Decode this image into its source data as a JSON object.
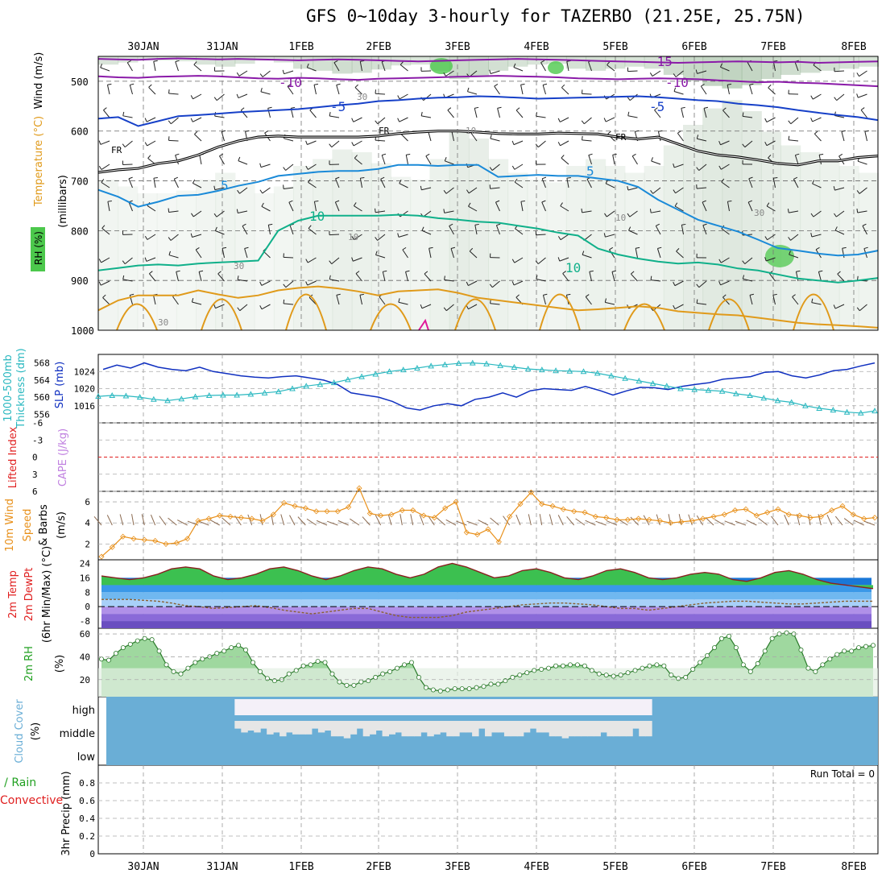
{
  "title": "GFS 0~10day 3-hourly for TAZERBO (21.25E, 25.75N)",
  "colors": {
    "purple": "#8a1aa8",
    "blue": "#1640c8",
    "lightblue": "#1a8ad8",
    "teal": "#10b08a",
    "orange": "#e09a1a",
    "magenta": "#e01a9a",
    "cyan": "#2ab8c0",
    "slp": "#1030c0",
    "wind10": "#e8901a",
    "barb10": "#8b6a50",
    "rhgreen": "#4cc84c",
    "cloud": "#6aaed6",
    "cloudHigh": "#f4f0f8",
    "cloudMid": "#e6e6e6",
    "red": "#e02020",
    "green": "#20a020"
  },
  "chart_data": [
    {
      "type": "line",
      "name": "upper-air cross-section",
      "x_ticks": [
        "30JAN",
        "31JAN",
        "1FEB",
        "2FEB",
        "3FEB",
        "4FEB",
        "5FEB",
        "6FEB",
        "7FEB",
        "8FEB"
      ],
      "ylabel": "(millibars)",
      "left_labels": [
        "RH (%)",
        "Temperature (°C)",
        "Wind (m/s)"
      ],
      "ylim": [
        1000,
        450
      ],
      "yticks": [
        500,
        600,
        700,
        800,
        900,
        1000
      ],
      "contour_labels": [
        "-15",
        "-10",
        "-10",
        "-5",
        "-5",
        "FR",
        "FR",
        "FR",
        "5",
        "5",
        "10",
        "10",
        "30",
        "30",
        "30",
        "10",
        "10",
        "10",
        "30"
      ],
      "isotherms": [
        {
          "name": "-15",
          "values": [
            455,
            456,
            457,
            455,
            454,
            455,
            456,
            455,
            456,
            457,
            458,
            457,
            456,
            457,
            458,
            459,
            460,
            459,
            458,
            457,
            456,
            455,
            456,
            457,
            458,
            459,
            460,
            461,
            462,
            463,
            462,
            461,
            460,
            461,
            462,
            461,
            463,
            462,
            461,
            460
          ]
        },
        {
          "name": "-10",
          "values": [
            490,
            492,
            493,
            491,
            490,
            489,
            490,
            492,
            494,
            495,
            493,
            494,
            496,
            497,
            495,
            494,
            493,
            492,
            491,
            490,
            489,
            490,
            491,
            492,
            494,
            495,
            496,
            495,
            494,
            495,
            496,
            498,
            500,
            502,
            501,
            503,
            504,
            506,
            508,
            510
          ]
        },
        {
          "name": "-5",
          "values": [
            575,
            572,
            590,
            580,
            570,
            568,
            565,
            562,
            560,
            558,
            556,
            552,
            548,
            545,
            540,
            538,
            535,
            533,
            532,
            530,
            531,
            533,
            535,
            534,
            533,
            532,
            531,
            530,
            532,
            535,
            538,
            540,
            545,
            548,
            552,
            558,
            563,
            568,
            572,
            578
          ]
        },
        {
          "name": "FR",
          "values": [
            683,
            678,
            675,
            665,
            660,
            648,
            632,
            620,
            612,
            610,
            612,
            612,
            612,
            612,
            610,
            605,
            602,
            600,
            600,
            602,
            605,
            606,
            606,
            604,
            605,
            606,
            612,
            616,
            612,
            626,
            640,
            648,
            652,
            658,
            665,
            668,
            660,
            660,
            653,
            650
          ]
        },
        {
          "name": "5",
          "values": [
            718,
            732,
            752,
            742,
            730,
            728,
            720,
            710,
            702,
            690,
            686,
            682,
            680,
            680,
            676,
            668,
            668,
            670,
            668,
            668,
            692,
            690,
            688,
            690,
            690,
            695,
            700,
            712,
            738,
            758,
            778,
            790,
            802,
            818,
            835,
            840,
            846,
            850,
            848,
            840
          ]
        },
        {
          "name": "10",
          "values": [
            880,
            875,
            870,
            868,
            870,
            866,
            864,
            862,
            860,
            800,
            780,
            770,
            770,
            770,
            770,
            768,
            770,
            775,
            778,
            782,
            784,
            790,
            796,
            804,
            810,
            836,
            848,
            856,
            862,
            866,
            864,
            868,
            876,
            880,
            888,
            896,
            900,
            904,
            900,
            895
          ]
        }
      ],
      "orange_contour": {
        "name": "lower",
        "values": [
          960,
          940,
          930,
          930,
          930,
          920,
          928,
          935,
          930,
          920,
          915,
          912,
          916,
          922,
          930,
          922,
          920,
          918,
          925,
          935,
          940,
          945,
          950,
          955,
          960,
          958,
          955,
          952,
          955,
          962,
          965,
          968,
          970,
          975,
          980,
          985,
          988,
          990,
          992,
          995
        ]
      },
      "rh_shade": [
        0.2,
        0.15,
        0.1,
        0.1,
        0.12,
        0.2,
        0.25,
        0.18,
        0.1,
        0.15,
        0.3,
        0.35,
        0.42,
        0.4,
        0.32,
        0.22,
        0.2,
        0.35,
        0.55,
        0.5,
        0.35,
        0.25,
        0.2,
        0.18,
        0.3,
        0.35,
        0.3,
        0.25,
        0.3,
        0.45,
        0.6,
        0.72,
        0.78,
        0.7,
        0.55,
        0.45,
        0.4,
        0.35,
        0.3,
        0.25
      ]
    },
    {
      "type": "line",
      "name": "SLP and thickness",
      "left_labels": [
        "1000-500mb",
        "Thickness (dm)",
        "SLP (mb)"
      ],
      "slp_label": "SLP (mb)",
      "slp_ticks": [
        1016,
        1020,
        1024
      ],
      "thick_ticks": [
        556,
        560,
        564,
        568
      ],
      "slp": [
        1024.5,
        1025.5,
        1024.8,
        1026,
        1025,
        1024.5,
        1024.2,
        1025,
        1024,
        1023.5,
        1023,
        1022.7,
        1022.5,
        1022.8,
        1023,
        1022.5,
        1022,
        1021,
        1019,
        1018.5,
        1018,
        1017,
        1015.5,
        1015,
        1016,
        1016.5,
        1016,
        1017.5,
        1018,
        1019,
        1018,
        1019.5,
        1020,
        1019.8,
        1019.6,
        1020.5,
        1019.6,
        1018.5,
        1019.5,
        1020.3,
        1020.2,
        1019.8,
        1020.5,
        1021,
        1021.4,
        1022.2,
        1022.5,
        1022.8,
        1023.8,
        1024,
        1023,
        1022.5,
        1023.2,
        1024.2,
        1024.5,
        1025.3,
        1026
      ],
      "thickness": [
        560.2,
        560.4,
        560.3,
        560,
        559.5,
        559.2,
        559.6,
        560.1,
        560.4,
        560.5,
        560.5,
        560.7,
        561,
        561.3,
        562,
        562.6,
        563,
        563.4,
        564.1,
        564.8,
        565.4,
        566,
        566.4,
        566.8,
        567.3,
        567.6,
        567.9,
        568,
        567.8,
        567.4,
        567,
        566.6,
        566.4,
        566.2,
        566.1,
        566,
        565.6,
        565,
        564.4,
        563.8,
        563.2,
        562.6,
        562,
        561.8,
        561.6,
        561.4,
        560.8,
        560.4,
        559.8,
        559.2,
        558.8,
        558,
        557.4,
        557,
        556.5,
        556.3,
        556.8
      ]
    },
    {
      "type": "line",
      "name": "CAPE and Lifted Index",
      "left_labels": [
        "Lifted Index",
        "CAPE (J/kg)"
      ],
      "lifted_index_ticks": [
        "-6",
        "-3",
        "0",
        "3",
        "6"
      ],
      "lifted_index": [
        0,
        0,
        0,
        0,
        0,
        0,
        0,
        0,
        0,
        0
      ]
    },
    {
      "type": "line",
      "name": "10m wind",
      "left_labels": [
        "10m Wind",
        "Speed",
        "& Barbs",
        "(m/s)"
      ],
      "yticks": [
        2,
        4,
        6
      ],
      "ylim": [
        0.5,
        7
      ],
      "speed": [
        0.8,
        1.7,
        2.7,
        2.5,
        2.4,
        2.3,
        2,
        2.1,
        2.5,
        4.2,
        4.4,
        4.7,
        4.6,
        4.5,
        4.4,
        4.2,
        4.8,
        5.9,
        5.6,
        5.4,
        5.1,
        5.1,
        5.1,
        5.5,
        7.3,
        4.9,
        4.7,
        4.8,
        5.2,
        5.2,
        4.7,
        4.5,
        5.4,
        6,
        3.1,
        2.9,
        3.4,
        2.2,
        4.6,
        5.8,
        6.9,
        5.8,
        5.6,
        5.3,
        5.1,
        5,
        4.6,
        4.5,
        4.3,
        4.3,
        4.4,
        4.3,
        4.2,
        4,
        4.1,
        4.2,
        4.4,
        4.6,
        4.8,
        5.2,
        5.3,
        4.7,
        5,
        5.3,
        4.8,
        4.7,
        4.5,
        4.6,
        5.2,
        5.6,
        4.8,
        4.4,
        4.5
      ]
    },
    {
      "type": "area",
      "name": "2m temperature",
      "left_labels": [
        "2m Temp",
        "2m DewPt",
        "(6hr Min/Max) (°C)"
      ],
      "yticks": [
        -8,
        0,
        8,
        16,
        24
      ],
      "ylim": [
        -12,
        26
      ],
      "temp": [
        17,
        16,
        15,
        16,
        18,
        21,
        22,
        21,
        17,
        15,
        16,
        18,
        21,
        22,
        20,
        17,
        15,
        17,
        20,
        22,
        21,
        18,
        16,
        18,
        22,
        24,
        22,
        19,
        16,
        17,
        20,
        21,
        19,
        16,
        15,
        17,
        20,
        21,
        19,
        16,
        15,
        16,
        18,
        19,
        18,
        15,
        14,
        16,
        19,
        20,
        18,
        15,
        13,
        12,
        11,
        10
      ],
      "dewpt": [
        4,
        4,
        4,
        3.5,
        3,
        2,
        0.5,
        0,
        -1,
        -0.5,
        0,
        0.5,
        -0.5,
        -2,
        -3,
        -4,
        -3,
        -2,
        -1,
        -1,
        -3,
        -5,
        -6,
        -6,
        -6,
        -5,
        -3,
        -2,
        -1,
        0,
        1,
        1.5,
        2,
        2,
        1.5,
        1,
        0,
        -1,
        -1,
        -2,
        -1,
        0,
        1,
        2,
        2.5,
        3,
        3,
        2.5,
        2,
        1.5,
        1.5,
        2,
        2.5,
        3,
        3,
        3
      ]
    },
    {
      "type": "area",
      "name": "2m RH",
      "left_label": "2m RH",
      "ylabel": "(%)",
      "yticks": [
        20,
        40,
        60
      ],
      "ylim": [
        5,
        65
      ],
      "rh": [
        38,
        37,
        43,
        48,
        51,
        54,
        56,
        55,
        45,
        33,
        27,
        25,
        30,
        35,
        38,
        40,
        43,
        45,
        48,
        50,
        46,
        35,
        27,
        21,
        19,
        20,
        25,
        28,
        32,
        33,
        36,
        35,
        25,
        18,
        15,
        15,
        18,
        19,
        22,
        25,
        27,
        30,
        33,
        35,
        22,
        13,
        11,
        10,
        11,
        12,
        12,
        12,
        13,
        14,
        16,
        16,
        19,
        22,
        24,
        26,
        28,
        29,
        30,
        32,
        32,
        33,
        33,
        32,
        28,
        25,
        24,
        23,
        24,
        26,
        28,
        30,
        32,
        33,
        32,
        24,
        21,
        22,
        29,
        35,
        41,
        48,
        56,
        58,
        48,
        33,
        27,
        34,
        45,
        56,
        60,
        61,
        60,
        46,
        30,
        27,
        33,
        38,
        42,
        45,
        45,
        48,
        49,
        50
      ]
    },
    {
      "type": "bar",
      "name": "Cloud Cover",
      "left_labels": [
        "Cloud Cover",
        "(%)"
      ],
      "levels": [
        "high",
        "middle",
        "low"
      ],
      "high": [
        100,
        100,
        100,
        100,
        60,
        100,
        70,
        100,
        100,
        100,
        80,
        100,
        100,
        100,
        100,
        100,
        100,
        100,
        100,
        100,
        100,
        100,
        100,
        100,
        100,
        100,
        100,
        100,
        100,
        100,
        100,
        100,
        100,
        100,
        100,
        100,
        100,
        100,
        100,
        100,
        100,
        100,
        100,
        100,
        100,
        100,
        100,
        100,
        100,
        100,
        100,
        100,
        100,
        100,
        100,
        100,
        100,
        100,
        100,
        100,
        100,
        100,
        100,
        100,
        100,
        100,
        100,
        100,
        100,
        100,
        100,
        100,
        100,
        100,
        100,
        100,
        100,
        100,
        100,
        100,
        100,
        100,
        100,
        100,
        100,
        100,
        100,
        100,
        100,
        100,
        100,
        100,
        100,
        100,
        100,
        100,
        100,
        100,
        100,
        100,
        100,
        100,
        100,
        100,
        100,
        100,
        100,
        100,
        100,
        100,
        100,
        100,
        100,
        100,
        100,
        100,
        100,
        100,
        100,
        100
      ],
      "middle": [
        100,
        100,
        100,
        100,
        100,
        100,
        100,
        100,
        100,
        100,
        100,
        100,
        100,
        100,
        100,
        100,
        100,
        100,
        100,
        100,
        60,
        40,
        50,
        40,
        60,
        30,
        40,
        20,
        40,
        30,
        30,
        30,
        60,
        40,
        50,
        20,
        20,
        10,
        30,
        60,
        20,
        30,
        50,
        20,
        30,
        40,
        20,
        20,
        20,
        40,
        20,
        30,
        40,
        20,
        20,
        40,
        40,
        20,
        60,
        20,
        40,
        40,
        20,
        20,
        20,
        40,
        60,
        40,
        40,
        20,
        20,
        10,
        20,
        20,
        20,
        20,
        20,
        40,
        20,
        20,
        20,
        20,
        60,
        20,
        20,
        100,
        100,
        100,
        100,
        100,
        100,
        100,
        100,
        100,
        100,
        100,
        100,
        100,
        100,
        100,
        100,
        100,
        100,
        100,
        100,
        100,
        100,
        100,
        100,
        100,
        100,
        100,
        100,
        100,
        100,
        100,
        100,
        100,
        100,
        100
      ],
      "run_total_label": "Run Total = 0"
    },
    {
      "type": "bar",
      "name": "3hr Precip",
      "left_labels": [
        "Total / Rain",
        "Convective",
        "3hr Precip (mm)"
      ],
      "yticks": [
        "0",
        "0.2",
        "0.4",
        "0.6",
        "0.8"
      ],
      "ylim": [
        0,
        1
      ],
      "values": []
    }
  ]
}
